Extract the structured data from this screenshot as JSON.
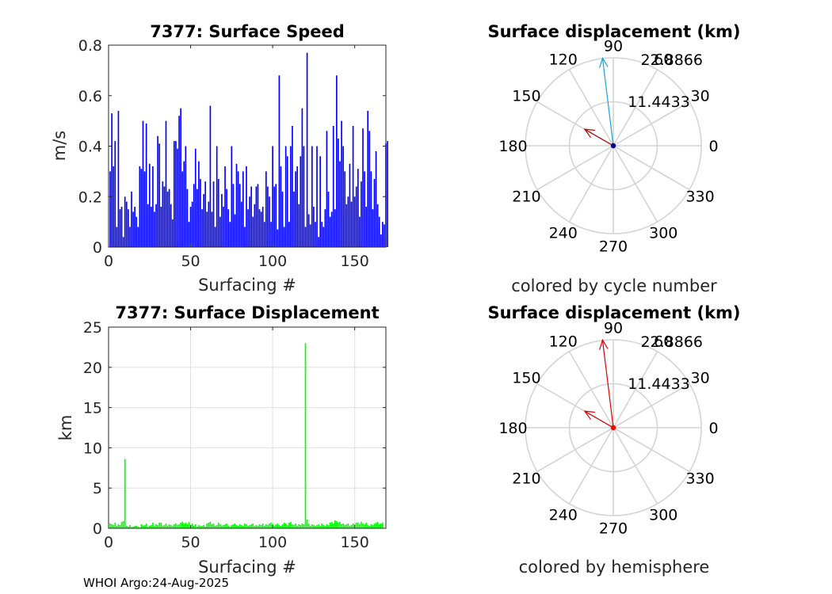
{
  "footer": "WHOI Argo:24-Aug-2025",
  "chart_data": [
    {
      "type": "bar",
      "title": "7377: Surface Speed",
      "xlabel": "Surfacing #",
      "ylabel": "m/s",
      "xlim": [
        0,
        169
      ],
      "ylim": [
        0,
        0.8
      ],
      "xticks": [
        "0",
        "50",
        "100",
        "150"
      ],
      "yticks": [
        "0",
        "0.2",
        "0.4",
        "0.6",
        "0.8"
      ],
      "color": "#0000ff",
      "grid": false,
      "values": [
        0.3,
        0.53,
        0.32,
        0.42,
        0.08,
        0.54,
        0.15,
        0.16,
        0.04,
        0.2,
        0.18,
        0.15,
        0.08,
        0.22,
        0.14,
        0.16,
        0.12,
        0.08,
        0.32,
        0.31,
        0.5,
        0.3,
        0.49,
        0.17,
        0.33,
        0.16,
        0.32,
        0.14,
        0.17,
        0.44,
        0.41,
        0.16,
        0.26,
        0.24,
        0.5,
        0.22,
        0.23,
        0.17,
        0.11,
        0.42,
        0.42,
        0.39,
        0.52,
        0.55,
        0.3,
        0.34,
        0.4,
        0.23,
        0.1,
        0.16,
        0.18,
        0.25,
        0.39,
        0.23,
        0.34,
        0.27,
        0.15,
        0.21,
        0.26,
        0.14,
        0.18,
        0.56,
        0.14,
        0.26,
        0.08,
        0.4,
        0.27,
        0.12,
        0.21,
        0.16,
        0.32,
        0.23,
        0.15,
        0.1,
        0.4,
        0.25,
        0.13,
        0.33,
        0.3,
        0.25,
        0.18,
        0.3,
        0.08,
        0.32,
        0.15,
        0.2,
        0.24,
        0.12,
        0.17,
        0.24,
        0.25,
        0.15,
        0.14,
        0.16,
        0.1,
        0.3,
        0.24,
        0.2,
        0.1,
        0.4,
        0.24,
        0.25,
        0.07,
        0.68,
        0.32,
        0.22,
        0.08,
        0.4,
        0.36,
        0.1,
        0.4,
        0.48,
        0.22,
        0.3,
        0.32,
        0.17,
        0.36,
        0.55,
        0.4,
        0.08,
        0.77,
        0.13,
        0.09,
        0.4,
        0.16,
        0.1,
        0.4,
        0.04,
        0.36,
        0.1,
        0.08,
        0.15,
        0.46,
        0.22,
        0.12,
        0.14,
        0.48,
        0.15,
        0.68,
        0.43,
        0.34,
        0.5,
        0.4,
        0.3,
        0.17,
        0.2,
        0.33,
        0.18,
        0.48,
        0.2,
        0.24,
        0.31,
        0.12,
        0.26,
        0.47,
        0.3,
        0.16,
        0.54,
        0.46,
        0.3,
        0.15,
        0.27,
        0.38,
        0.17,
        0.12,
        0.05,
        0.1,
        0.09,
        0.41,
        0.42
      ]
    },
    {
      "type": "bar",
      "title": "7377: Surface Displacement",
      "xlabel": "Surfacing #",
      "ylabel": "km",
      "xlim": [
        0,
        169
      ],
      "ylim": [
        0,
        25
      ],
      "xticks": [
        "0",
        "50",
        "100",
        "150"
      ],
      "yticks": [
        "0",
        "5",
        "10",
        "15",
        "20",
        "25"
      ],
      "color": "#00ff00",
      "grid": true,
      "values": [
        0.6,
        0.5,
        0.4,
        0.7,
        0.3,
        0.5,
        0.4,
        0.8,
        0.9,
        8.6,
        0.3,
        0.2,
        0.4,
        0.1,
        0.2,
        0.3,
        0.3,
        0.2,
        0.1,
        0.5,
        0.3,
        0.4,
        0.6,
        0.2,
        0.3,
        0.4,
        0.7,
        0.3,
        0.5,
        0.4,
        0.7,
        0.7,
        0.3,
        0.4,
        0.6,
        0.3,
        0.5,
        0.4,
        0.3,
        0.5,
        0.6,
        0.4,
        0.5,
        0.7,
        0.8,
        0.6,
        0.7,
        0.5,
        0.8,
        0.4,
        0.6,
        0.3,
        0.5,
        0.2,
        0.4,
        0.3,
        0.3,
        0.4,
        0.2,
        0.6,
        0.7,
        0.8,
        0.5,
        0.6,
        0.3,
        0.4,
        0.7,
        0.5,
        0.3,
        0.4,
        0.5,
        0.6,
        0.3,
        0.2,
        0.4,
        0.5,
        0.6,
        0.4,
        0.3,
        0.5,
        0.4,
        0.3,
        0.6,
        0.5,
        0.3,
        0.4,
        0.5,
        0.6,
        0.3,
        0.4,
        0.3,
        0.5,
        0.4,
        0.6,
        0.3,
        0.5,
        0.4,
        0.6,
        0.7,
        0.5,
        0.3,
        0.5,
        0.6,
        0.4,
        0.3,
        0.5,
        0.7,
        0.6,
        0.4,
        0.7,
        0.8,
        0.5,
        0.4,
        0.6,
        0.3,
        0.5,
        0.4,
        0.6,
        0.5,
        23.0,
        1.1,
        0.6,
        0.3,
        0.5,
        0.4,
        0.3,
        0.4,
        0.5,
        0.3,
        0.6,
        0.4,
        0.3,
        0.5,
        0.4,
        0.7,
        0.8,
        0.6,
        1.0,
        0.9,
        0.7,
        0.8,
        0.5,
        0.6,
        0.4,
        0.5,
        0.6,
        0.3,
        0.4,
        0.6,
        0.5,
        0.7,
        0.7,
        0.5,
        0.8,
        0.6,
        0.5,
        0.7,
        0.4,
        0.3,
        0.5,
        0.4,
        0.6,
        0.7,
        0.8,
        0.5,
        0.6,
        0.7
      ]
    },
    {
      "type": "polar",
      "title": "Surface displacement (km)",
      "caption": "colored by cycle number",
      "rlim": [
        0,
        22.8866
      ],
      "rticks": [
        "11.4433",
        "22.8866"
      ],
      "theta_ticks": [
        "0",
        "30",
        "60",
        "90",
        "120",
        "150",
        "180",
        "210",
        "240",
        "270",
        "300",
        "330"
      ],
      "vectors": [
        {
          "angle_deg": 97,
          "magnitude": 23.0,
          "color": "#1aa3d9"
        },
        {
          "angle_deg": 150,
          "magnitude": 8.6,
          "color": "#b30000"
        }
      ],
      "origin_color": "#00008b"
    },
    {
      "type": "polar",
      "title": "Surface displacement (km)",
      "caption": "colored by hemisphere",
      "rlim": [
        0,
        22.8866
      ],
      "rticks": [
        "11.4433",
        "22.8866"
      ],
      "theta_ticks": [
        "0",
        "30",
        "60",
        "90",
        "120",
        "150",
        "180",
        "210",
        "240",
        "270",
        "300",
        "330"
      ],
      "vectors": [
        {
          "angle_deg": 97,
          "magnitude": 23.0,
          "color": "#dd0000"
        },
        {
          "angle_deg": 150,
          "magnitude": 8.6,
          "color": "#dd0000"
        }
      ],
      "origin_color": "#ff0000"
    }
  ]
}
